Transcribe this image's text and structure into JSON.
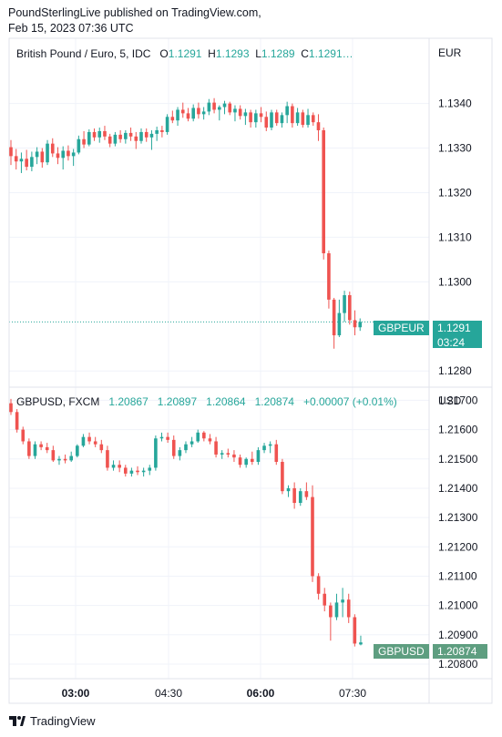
{
  "header": {
    "line1": "PoundSterlingLive published on TradingView.com,",
    "line2": "Feb 15, 2023 07:36 UTC"
  },
  "footer": {
    "brand": "TradingView",
    "logo_icon": "tradingview-logo-icon"
  },
  "colors": {
    "up": "#26a69a",
    "down": "#ef5350",
    "grid": "#f0f3fa",
    "tag_eur": "#26a69a",
    "tag_usd": "#5e9e80"
  },
  "time_axis": [
    "03:00",
    "04:30",
    "06:00",
    "07:30"
  ],
  "time_axis_bold": [
    "03:00",
    "06:00"
  ],
  "chart_data": [
    {
      "type": "candlestick",
      "title": "British Pound / Euro, 5, IDC",
      "currency": "EUR",
      "ohlc_legend": {
        "o_label": "O",
        "o": "1.1291",
        "h_label": "H",
        "h": "1.1293",
        "l_label": "L",
        "l": "1.1289",
        "c_label": "C",
        "c": "1.1291…"
      },
      "y_ticks": [
        "1.1340",
        "1.1330",
        "1.1320",
        "1.1310",
        "1.1300",
        "1.1280"
      ],
      "ylim": [
        1.1278,
        1.1353
      ],
      "price_label": {
        "symbol": "GBPEUR",
        "price": "1.1291",
        "countdown": "03:24"
      },
      "candles": [
        [
          1.13302,
          1.13318,
          1.13262,
          1.13282
        ],
        [
          1.13282,
          1.13298,
          1.13252,
          1.1327
        ],
        [
          1.1327,
          1.1329,
          1.13244,
          1.13276
        ],
        [
          1.13276,
          1.13296,
          1.1325,
          1.13258
        ],
        [
          1.13258,
          1.13292,
          1.13248,
          1.1328
        ],
        [
          1.1328,
          1.13302,
          1.13264,
          1.13292
        ],
        [
          1.13292,
          1.133,
          1.13256,
          1.13268
        ],
        [
          1.13268,
          1.13318,
          1.13262,
          1.1331
        ],
        [
          1.1331,
          1.13322,
          1.1328,
          1.13288
        ],
        [
          1.13288,
          1.13302,
          1.13264,
          1.13278
        ],
        [
          1.13278,
          1.13304,
          1.13252,
          1.13294
        ],
        [
          1.13294,
          1.13306,
          1.13272,
          1.13282
        ],
        [
          1.13282,
          1.13298,
          1.1326,
          1.1329
        ],
        [
          1.1329,
          1.13328,
          1.13286,
          1.1332
        ],
        [
          1.1332,
          1.13338,
          1.133,
          1.13308
        ],
        [
          1.13308,
          1.13342,
          1.13304,
          1.13336
        ],
        [
          1.13336,
          1.13344,
          1.13316,
          1.13324
        ],
        [
          1.13324,
          1.13346,
          1.13312,
          1.13338
        ],
        [
          1.13338,
          1.1335,
          1.13318,
          1.13326
        ],
        [
          1.13326,
          1.13332,
          1.13302,
          1.1331
        ],
        [
          1.1331,
          1.13336,
          1.13304,
          1.1333
        ],
        [
          1.1333,
          1.1334,
          1.13312,
          1.1332
        ],
        [
          1.1332,
          1.1334,
          1.1331,
          1.13334
        ],
        [
          1.13334,
          1.13346,
          1.13316,
          1.13326
        ],
        [
          1.13326,
          1.13336,
          1.13298,
          1.13316
        ],
        [
          1.13316,
          1.13344,
          1.1331,
          1.13336
        ],
        [
          1.13336,
          1.13344,
          1.13314,
          1.13324
        ],
        [
          1.13324,
          1.1334,
          1.13296,
          1.13332
        ],
        [
          1.13332,
          1.13348,
          1.13316,
          1.1334
        ],
        [
          1.1334,
          1.1335,
          1.13324,
          1.13336
        ],
        [
          1.13336,
          1.13376,
          1.1333,
          1.1337
        ],
        [
          1.1337,
          1.13384,
          1.13356,
          1.13362
        ],
        [
          1.13362,
          1.13392,
          1.1335,
          1.13386
        ],
        [
          1.13386,
          1.13402,
          1.13368,
          1.13378
        ],
        [
          1.13378,
          1.1339,
          1.1336,
          1.13366
        ],
        [
          1.13366,
          1.13398,
          1.1336,
          1.1339
        ],
        [
          1.1339,
          1.13402,
          1.13366,
          1.13376
        ],
        [
          1.13376,
          1.13392,
          1.13364,
          1.13382
        ],
        [
          1.13382,
          1.1341,
          1.13374,
          1.13402
        ],
        [
          1.13402,
          1.13412,
          1.13378,
          1.13386
        ],
        [
          1.13386,
          1.13396,
          1.13362,
          1.13392
        ],
        [
          1.13392,
          1.13406,
          1.13376,
          1.134
        ],
        [
          1.134,
          1.13404,
          1.13374,
          1.1338
        ],
        [
          1.1338,
          1.13396,
          1.1336,
          1.13388
        ],
        [
          1.13388,
          1.13396,
          1.13364,
          1.13372
        ],
        [
          1.13372,
          1.13388,
          1.13352,
          1.1338
        ],
        [
          1.1338,
          1.13386,
          1.13346,
          1.13358
        ],
        [
          1.13358,
          1.13386,
          1.13346,
          1.13378
        ],
        [
          1.13378,
          1.13392,
          1.13358,
          1.1337
        ],
        [
          1.1337,
          1.13382,
          1.13338,
          1.13346
        ],
        [
          1.13346,
          1.13386,
          1.1334,
          1.1338
        ],
        [
          1.1338,
          1.13386,
          1.1335,
          1.13356
        ],
        [
          1.13356,
          1.1338,
          1.13346,
          1.13374
        ],
        [
          1.13374,
          1.13404,
          1.13356,
          1.13394
        ],
        [
          1.13394,
          1.134,
          1.13346,
          1.13356
        ],
        [
          1.13356,
          1.1339,
          1.1335,
          1.1338
        ],
        [
          1.1338,
          1.13386,
          1.13346,
          1.13352
        ],
        [
          1.13352,
          1.13388,
          1.13346,
          1.13374
        ],
        [
          1.13374,
          1.1338,
          1.1335,
          1.13358
        ],
        [
          1.13358,
          1.13376,
          1.13316,
          1.1334
        ],
        [
          1.1334,
          1.13346,
          1.1305,
          1.13064
        ],
        [
          1.13064,
          1.1307,
          1.1294,
          1.1296
        ],
        [
          1.1296,
          1.12964,
          1.1285,
          1.1288
        ],
        [
          1.1288,
          1.1296,
          1.12876,
          1.1293
        ],
        [
          1.1293,
          1.1298,
          1.1291,
          1.1297
        ],
        [
          1.1297,
          1.12978,
          1.12904,
          1.12914
        ],
        [
          1.12914,
          1.12936,
          1.1288,
          1.12898
        ],
        [
          1.12898,
          1.12918,
          1.1289,
          1.1291
        ]
      ]
    },
    {
      "type": "candlestick",
      "title": "GBPUSD, FXCM",
      "currency": "USD",
      "ohlc_legend": {
        "o": "1.20867",
        "h": "1.20897",
        "l": "1.20864",
        "c": "1.20874",
        "change": "+0.00007 (+0.01%)"
      },
      "y_ticks": [
        "1.21700",
        "1.21600",
        "1.21500",
        "1.21400",
        "1.21300",
        "1.21200",
        "1.21100",
        "1.21000",
        "1.20900",
        "1.20800"
      ],
      "ylim": [
        1.20775,
        1.2172
      ],
      "price_label": {
        "symbol": "GBPUSD",
        "price": "1.20874"
      },
      "candles": [
        [
          1.2169,
          1.21705,
          1.2165,
          1.2166
        ],
        [
          1.2166,
          1.2167,
          1.2159,
          1.216
        ],
        [
          1.216,
          1.2161,
          1.2155,
          1.2156
        ],
        [
          1.2156,
          1.2157,
          1.215,
          1.2151
        ],
        [
          1.2151,
          1.2156,
          1.215,
          1.2155
        ],
        [
          1.2155,
          1.2156,
          1.2153,
          1.2154
        ],
        [
          1.2154,
          1.21555,
          1.2152,
          1.2153
        ],
        [
          1.2153,
          1.21545,
          1.2149,
          1.21495
        ],
        [
          1.21495,
          1.2151,
          1.2148,
          1.215
        ],
        [
          1.215,
          1.21515,
          1.21485,
          1.21495
        ],
        [
          1.21495,
          1.21525,
          1.2149,
          1.2151
        ],
        [
          1.2151,
          1.2155,
          1.21505,
          1.21545
        ],
        [
          1.21545,
          1.21585,
          1.2154,
          1.21575
        ],
        [
          1.21575,
          1.2159,
          1.2155,
          1.2156
        ],
        [
          1.2156,
          1.21575,
          1.2154,
          1.2155
        ],
        [
          1.2155,
          1.21565,
          1.2152,
          1.2153
        ],
        [
          1.2153,
          1.21545,
          1.2146,
          1.2147
        ],
        [
          1.2147,
          1.21495,
          1.2146,
          1.2148
        ],
        [
          1.2148,
          1.21495,
          1.21455,
          1.2147
        ],
        [
          1.2147,
          1.2148,
          1.2144,
          1.2145
        ],
        [
          1.2145,
          1.2147,
          1.2144,
          1.2146
        ],
        [
          1.2146,
          1.21475,
          1.21445,
          1.21455
        ],
        [
          1.21455,
          1.2147,
          1.2144,
          1.2146
        ],
        [
          1.2146,
          1.2148,
          1.21445,
          1.2147
        ],
        [
          1.2147,
          1.2158,
          1.2146,
          1.2157
        ],
        [
          1.2157,
          1.2159,
          1.2156,
          1.21575
        ],
        [
          1.21575,
          1.2159,
          1.21555,
          1.21565
        ],
        [
          1.21565,
          1.2158,
          1.215,
          1.2151
        ],
        [
          1.2151,
          1.2154,
          1.21495,
          1.2153
        ],
        [
          1.2153,
          1.2156,
          1.2152,
          1.2155
        ],
        [
          1.2155,
          1.21575,
          1.2154,
          1.2156
        ],
        [
          1.2156,
          1.216,
          1.21555,
          1.2159
        ],
        [
          1.2159,
          1.21595,
          1.2156,
          1.2157
        ],
        [
          1.2157,
          1.21585,
          1.2155,
          1.2156
        ],
        [
          1.2156,
          1.21575,
          1.21505,
          1.21515
        ],
        [
          1.21515,
          1.2153,
          1.215,
          1.2152
        ],
        [
          1.2152,
          1.21535,
          1.21505,
          1.21515
        ],
        [
          1.21515,
          1.2153,
          1.2149,
          1.21505
        ],
        [
          1.21505,
          1.21515,
          1.2147,
          1.2148
        ],
        [
          1.2148,
          1.21505,
          1.2147,
          1.215
        ],
        [
          1.215,
          1.21525,
          1.2148,
          1.2149
        ],
        [
          1.2149,
          1.2154,
          1.2148,
          1.2153
        ],
        [
          1.2153,
          1.21555,
          1.2152,
          1.21545
        ],
        [
          1.21545,
          1.2156,
          1.2152,
          1.2155
        ],
        [
          1.2155,
          1.21565,
          1.2148,
          1.2149
        ],
        [
          1.2149,
          1.215,
          1.2138,
          1.2139
        ],
        [
          1.2139,
          1.2141,
          1.2137,
          1.214
        ],
        [
          1.214,
          1.2142,
          1.2133,
          1.2135
        ],
        [
          1.2135,
          1.214,
          1.2134,
          1.2139
        ],
        [
          1.2139,
          1.2142,
          1.2136,
          1.2137
        ],
        [
          1.2137,
          1.2141,
          1.2108,
          1.211
        ],
        [
          1.211,
          1.2111,
          1.2102,
          1.2104
        ],
        [
          1.2104,
          1.2106,
          1.2098,
          1.21
        ],
        [
          1.21,
          1.2101,
          1.2088,
          1.2096
        ],
        [
          1.2096,
          1.2104,
          1.2095,
          1.2101
        ],
        [
          1.2101,
          1.2106,
          1.2096,
          1.2102
        ],
        [
          1.2102,
          1.2104,
          1.2094,
          1.2096
        ],
        [
          1.2096,
          1.2097,
          1.2086,
          1.2087
        ],
        [
          1.20867,
          1.20897,
          1.20864,
          1.20874
        ]
      ]
    }
  ]
}
